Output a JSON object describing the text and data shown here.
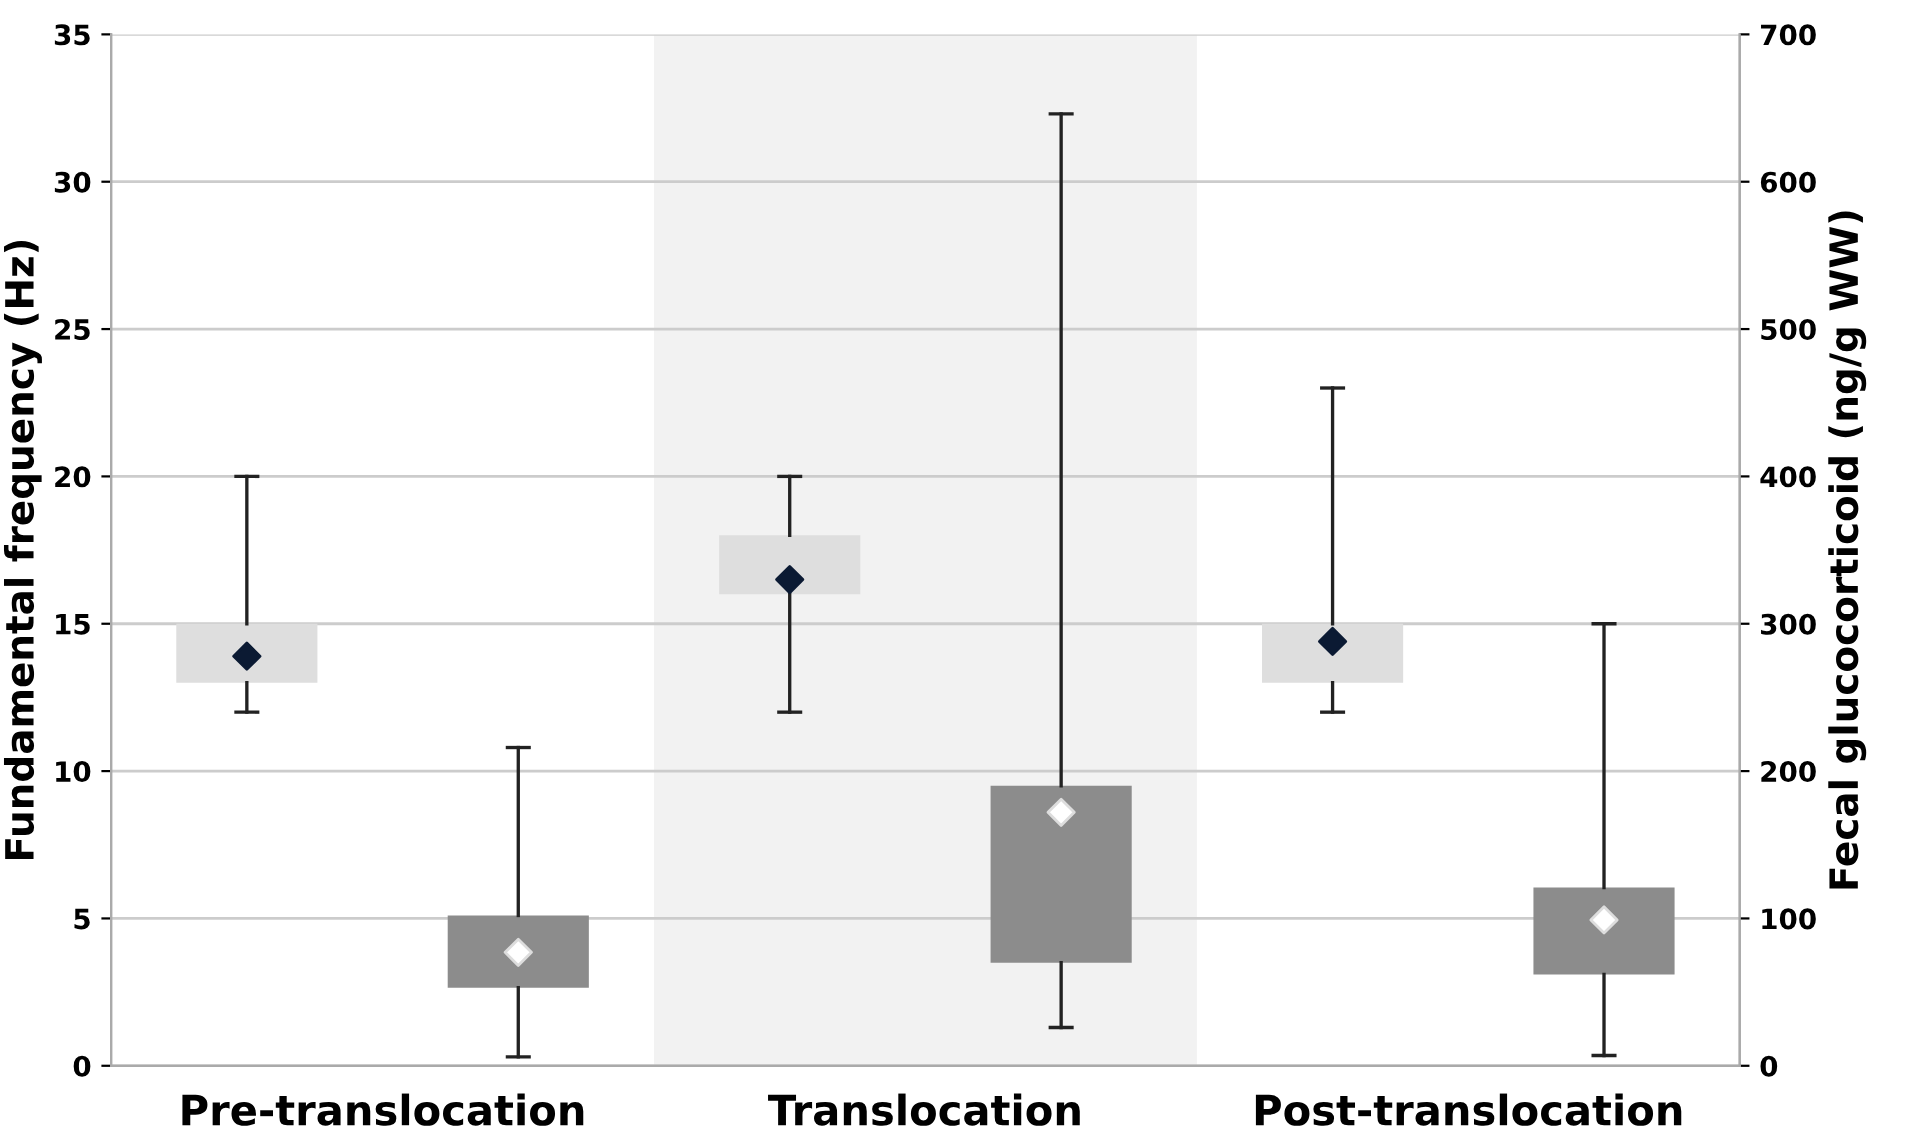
{
  "chart_data": {
    "type": "box",
    "categories": [
      "Pre-translocation",
      "Translocation",
      "Post-translocation"
    ],
    "ylabel": "Fundamental frequency (Hz)",
    "y2label": "Fecal glucocorticoid (ng/g WW)",
    "ylim": [
      0,
      35
    ],
    "yticks": [
      0,
      5,
      10,
      15,
      20,
      25,
      30,
      35
    ],
    "y2lim": [
      0,
      700
    ],
    "y2ticks": [
      0,
      100,
      200,
      300,
      400,
      500,
      600,
      700
    ],
    "grid": "y",
    "legend": false,
    "marker": "diamond",
    "bands": [
      {
        "axis": "x",
        "from": "Translocation",
        "to": "Translocation",
        "color": "#f2f2f2"
      }
    ],
    "series": [
      {
        "color": "#dedede",
        "boxes": [
          {
            "low": 12,
            "q1": 13,
            "median": 13.9,
            "q3": 15,
            "high": 20
          },
          {
            "low": 12,
            "q1": 16,
            "median": 16.5,
            "q3": 18,
            "high": 20
          },
          {
            "low": 12,
            "q1": 13,
            "median": 14.4,
            "q3": 15,
            "high": 23
          }
        ]
      },
      {
        "color": "#8c8c8c",
        "axis": "y2",
        "boxes": [
          {
            "low": 6,
            "q1": 53,
            "median": 77,
            "q3": 102,
            "high": 216
          },
          {
            "low": 26,
            "q1": 70,
            "median": 172,
            "q3": 190,
            "high": 646
          },
          {
            "low": 7,
            "q1": 62,
            "median": 99,
            "q3": 121,
            "high": 300
          }
        ]
      }
    ]
  }
}
